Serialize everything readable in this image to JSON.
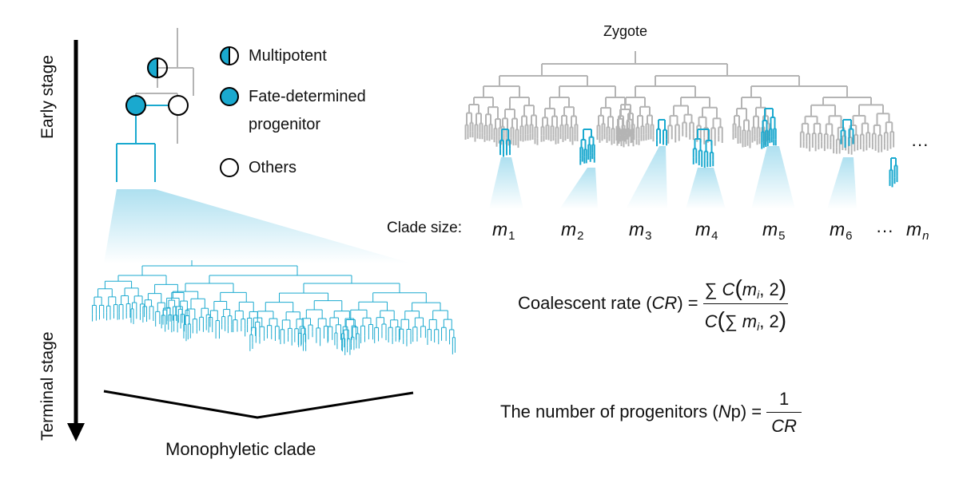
{
  "axis": {
    "early_label": "Early stage",
    "terminal_label": "Terminal stage"
  },
  "legend": [
    {
      "key": "multipotent",
      "text": "Multipotent"
    },
    {
      "key": "fate",
      "text": "Fate-determined",
      "text2": "progenitor"
    },
    {
      "key": "others",
      "text": "Others"
    }
  ],
  "zygote_label": "Zygote",
  "clade_size_label": "Clade size:",
  "m_symbol": "m",
  "clade_subscripts": [
    "1",
    "2",
    "3",
    "4",
    "5",
    "6",
    "n"
  ],
  "ellipsis": "···",
  "mono_label": "Monophyletic clade",
  "cr_formula": {
    "lhs_text": "Coalescent rate (",
    "lhs_var": "CR",
    "lhs_close": ") =",
    "sum": "∑",
    "c": "C",
    "m": "m",
    "i": "i",
    "two": ", 2"
  },
  "np_formula": {
    "lhs_text": "The number of progenitors (",
    "lhs_var": "N",
    "lhs_var2": "p",
    "lhs_close": ") =",
    "numerator": "1",
    "denominator": "CR"
  },
  "colors": {
    "accent": "#1aa9cf",
    "gray": "#b4b4b4",
    "black": "#000000",
    "fade": "#bfe6f3"
  }
}
